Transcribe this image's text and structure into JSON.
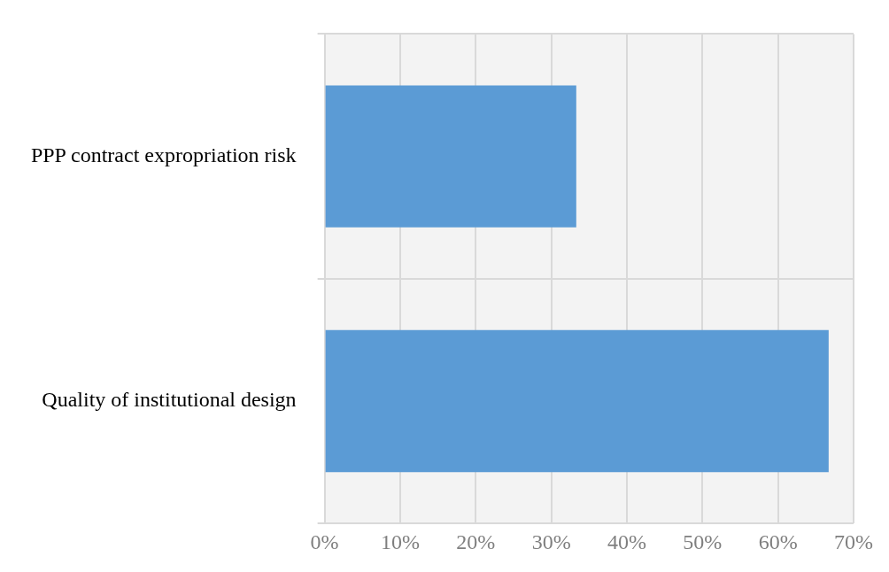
{
  "chart_data": {
    "type": "bar",
    "orientation": "horizontal",
    "categories": [
      "PPP contract expropriation risk",
      "Quality of institutional design"
    ],
    "values": [
      33.3,
      66.7
    ],
    "color": "#5b9bd5",
    "xlim": [
      0,
      70
    ],
    "xticks": [
      {
        "value": 0,
        "label": "0%"
      },
      {
        "value": 10,
        "label": "10%"
      },
      {
        "value": 20,
        "label": "20%"
      },
      {
        "value": 30,
        "label": "30%"
      },
      {
        "value": 40,
        "label": "40%"
      },
      {
        "value": 50,
        "label": "50%"
      },
      {
        "value": 60,
        "label": "60%"
      },
      {
        "value": 70,
        "label": "70%"
      }
    ],
    "grid": true,
    "legend": false
  }
}
